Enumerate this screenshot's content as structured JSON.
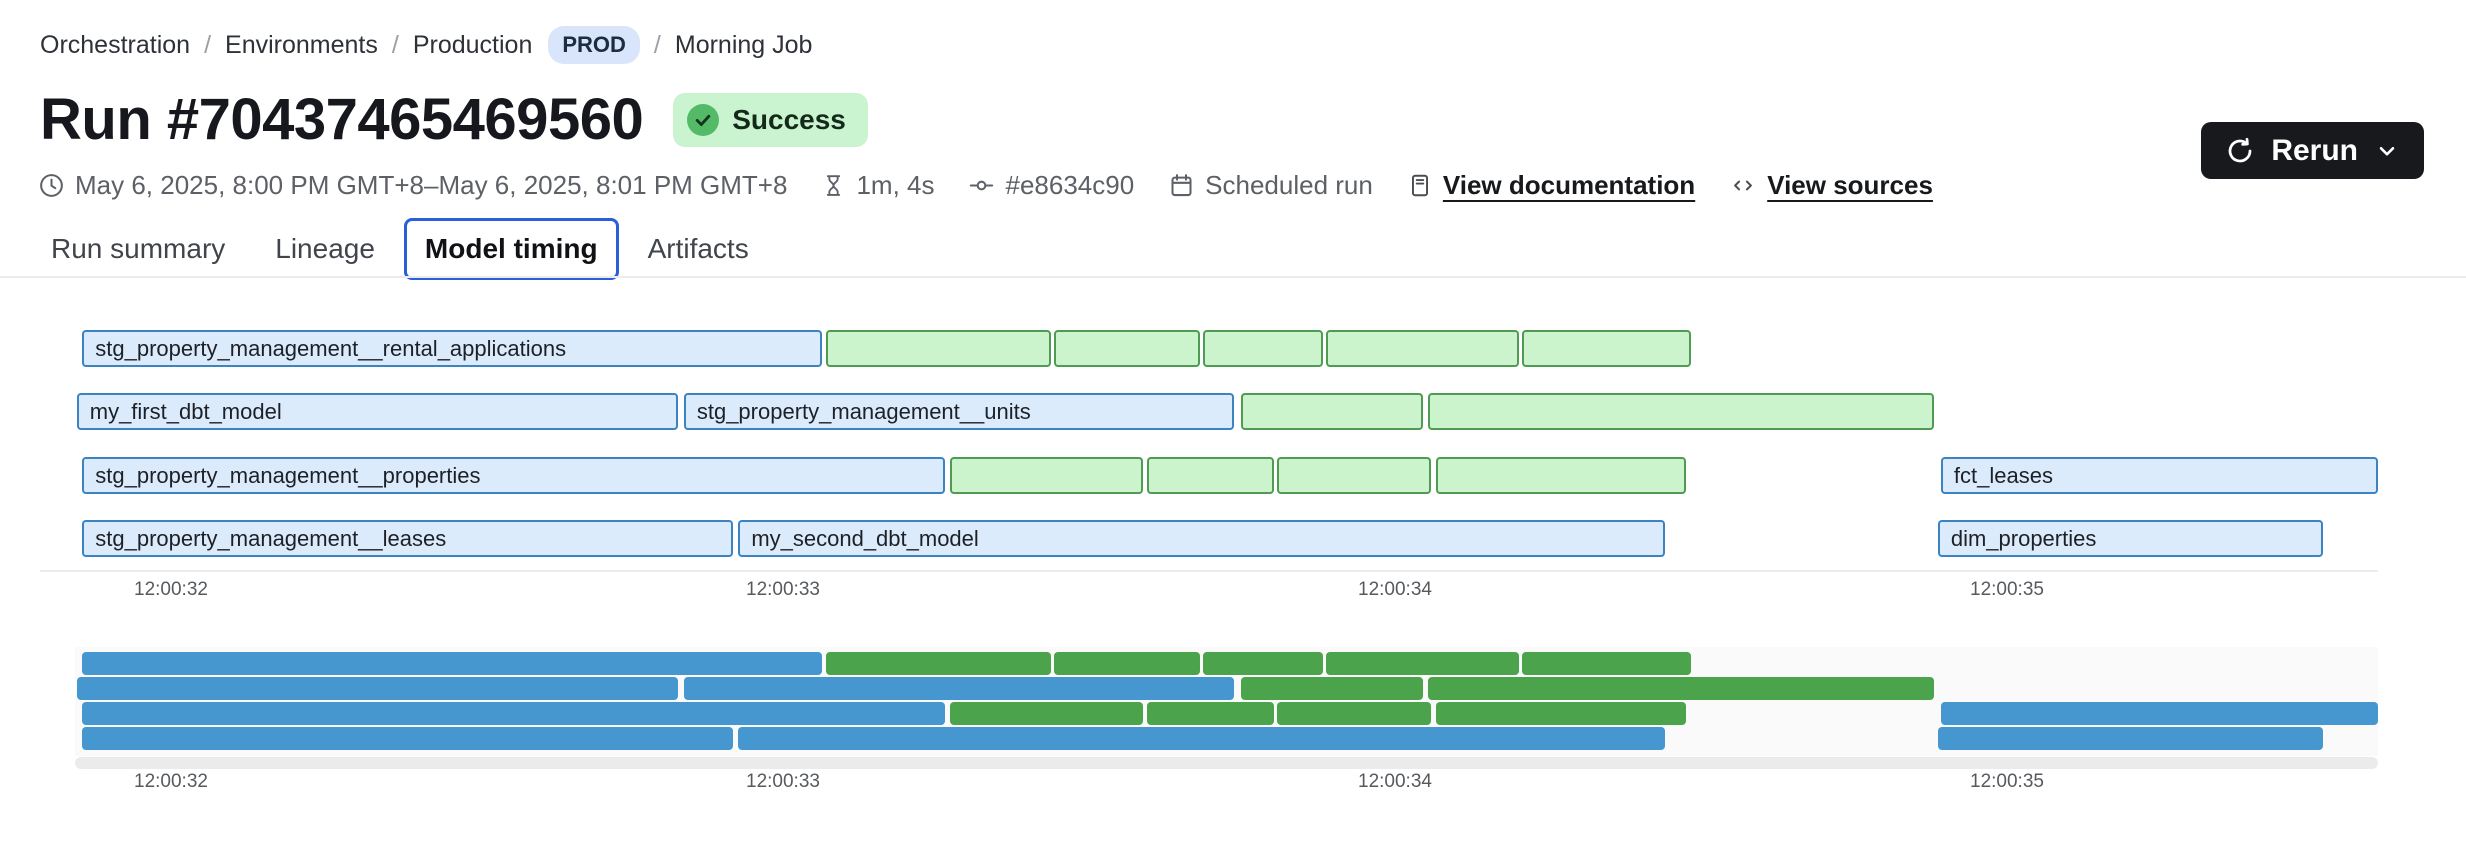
{
  "breadcrumb": {
    "separator": "/",
    "items": [
      {
        "label": "Orchestration"
      },
      {
        "label": "Environments"
      },
      {
        "label": "Production",
        "badge": "PROD"
      },
      {
        "label": "Morning Job"
      }
    ]
  },
  "run": {
    "title": "Run #70437465469560",
    "status": "Success"
  },
  "meta": {
    "time_range": "May 6, 2025, 8:00 PM GMT+8–May 6, 2025, 8:01 PM GMT+8",
    "duration": "1m, 4s",
    "commit": "#e8634c90",
    "trigger": "Scheduled run",
    "docs_link": "View documentation",
    "sources_link": "View sources"
  },
  "actions": {
    "rerun_label": "Rerun"
  },
  "tabs": {
    "items": [
      "Run summary",
      "Lineage",
      "Model timing",
      "Artifacts"
    ],
    "active": "Model timing"
  },
  "colors": {
    "status_badge_bg": "#c9f4cf",
    "status_icon": "#54ba68",
    "env_pill_bg": "#d8e5fb",
    "active_tab_border": "#2a5fd9",
    "rerun_button_bg": "#17191d",
    "bar_fill_blue": "#dcebfc",
    "bar_border_blue": "#3c83c2",
    "bar_fill_green": "#cbf4cd",
    "bar_border_green": "#4f9b53",
    "minimap_blue": "#4697cf",
    "minimap_green": "#4ba34c"
  },
  "chart_data": {
    "type": "gantt",
    "title": "Model timing",
    "x_axis": {
      "tick_labels": [
        "12:00:32",
        "12:00:33",
        "12:00:34",
        "12:00:35"
      ],
      "tick_seconds": [
        32,
        33,
        34,
        35
      ]
    },
    "legend": null,
    "rows": [
      [
        {
          "label": "stg_property_management__rental_applications",
          "color": "blue",
          "start": 31.855,
          "end": 33.064
        },
        {
          "color": "green",
          "start": 33.07,
          "end": 33.438
        },
        {
          "color": "green",
          "start": 33.443,
          "end": 33.681
        },
        {
          "color": "green",
          "start": 33.686,
          "end": 33.882
        },
        {
          "color": "green",
          "start": 33.887,
          "end": 34.203
        },
        {
          "color": "green",
          "start": 34.208,
          "end": 34.484
        }
      ],
      [
        {
          "label": "my_first_dbt_model",
          "color": "blue",
          "start": 31.846,
          "end": 32.828
        },
        {
          "label": "stg_property_management__units",
          "color": "blue",
          "start": 32.838,
          "end": 33.737
        },
        {
          "color": "green",
          "start": 33.748,
          "end": 34.046
        },
        {
          "color": "green",
          "start": 34.054,
          "end": 34.881
        }
      ],
      [
        {
          "label": "stg_property_management__properties",
          "color": "blue",
          "start": 31.855,
          "end": 33.265
        },
        {
          "color": "green",
          "start": 33.273,
          "end": 33.588
        },
        {
          "color": "green",
          "start": 33.595,
          "end": 33.802
        },
        {
          "color": "green",
          "start": 33.807,
          "end": 34.059
        },
        {
          "color": "green",
          "start": 34.067,
          "end": 34.475
        },
        {
          "label": "fct_leases",
          "color": "blue",
          "start": 34.892,
          "end": 35.606
        }
      ],
      [
        {
          "label": "stg_property_management__leases",
          "color": "blue",
          "start": 31.855,
          "end": 32.918
        },
        {
          "label": "my_second_dbt_model",
          "color": "blue",
          "start": 32.927,
          "end": 34.441
        },
        {
          "label": "dim_properties",
          "color": "blue",
          "start": 34.887,
          "end": 35.516
        }
      ]
    ]
  }
}
